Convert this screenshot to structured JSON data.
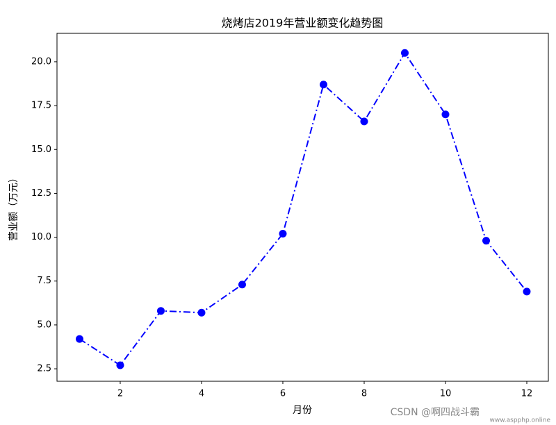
{
  "chart_data": {
    "type": "line",
    "title": "烧烤店2019年营业额变化趋势图",
    "xlabel": "月份",
    "ylabel": "营业额（万元）",
    "x": [
      1,
      2,
      3,
      4,
      5,
      6,
      7,
      8,
      9,
      10,
      11,
      12
    ],
    "values": [
      4.2,
      2.7,
      5.8,
      5.7,
      7.3,
      10.2,
      18.7,
      16.6,
      20.5,
      17.0,
      9.8,
      6.9
    ],
    "color": "#0000ff",
    "line_style": "dash-dot",
    "marker": "circle",
    "xlim": [
      0.445,
      12.53
    ],
    "xticks": [
      2,
      4,
      6,
      8,
      10,
      12
    ],
    "ylim": [
      1.79,
      21.62
    ],
    "yticks": [
      2.5,
      {
        "value": 5,
        "label": "5.0"
      },
      7.5,
      {
        "value": 10,
        "label": "10.0"
      },
      12.5,
      {
        "value": 15,
        "label": "15.0"
      },
      17.5,
      {
        "value": 20,
        "label": "20.0"
      }
    ],
    "grid": false,
    "watermark": [
      "CSDN @啊四战斗霸",
      "www.aspphp.online"
    ]
  }
}
